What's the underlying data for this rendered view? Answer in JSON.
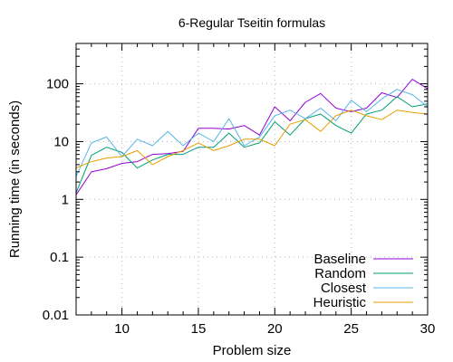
{
  "chart_data": {
    "type": "line",
    "title": "6-Regular Tseitin formulas",
    "xlabel": "Problem size",
    "ylabel": "Running time (in seconds)",
    "xlim": [
      7,
      30
    ],
    "ylim": [
      0.01,
      500
    ],
    "yscale": "log",
    "grid": true,
    "legend_position": "bottom-right",
    "x_ticks": [
      10,
      15,
      20,
      25,
      30
    ],
    "x_tick_labels": [
      "10",
      "15",
      "20",
      "25",
      "30"
    ],
    "y_ticks": [
      0.01,
      0.1,
      1,
      10,
      100
    ],
    "y_tick_labels": [
      "0.01",
      "0.1",
      "1",
      "10",
      "100"
    ],
    "x": [
      7,
      8,
      9,
      10,
      11,
      12,
      13,
      14,
      15,
      16,
      17,
      18,
      19,
      20,
      21,
      22,
      23,
      24,
      25,
      26,
      27,
      28,
      29,
      30
    ],
    "series": [
      {
        "name": "Baseline",
        "color": "#9400d3",
        "values": [
          1.2,
          3.0,
          3.4,
          4.2,
          4.5,
          6.0,
          6.2,
          6.8,
          17.0,
          17.0,
          16.5,
          19.0,
          13.0,
          40.0,
          23.0,
          48.0,
          68.0,
          38.0,
          33.0,
          38.0,
          70.0,
          58.0,
          120.0,
          82.0
        ]
      },
      {
        "name": "Random",
        "color": "#009e73",
        "values": [
          1.3,
          5.8,
          8.0,
          6.5,
          3.5,
          4.8,
          6.0,
          6.0,
          8.0,
          8.0,
          14.0,
          8.0,
          9.5,
          22.0,
          13.0,
          25.0,
          30.0,
          19.0,
          14.0,
          30.0,
          35.0,
          60.0,
          40.0,
          45.0
        ]
      },
      {
        "name": "Closest",
        "color": "#56b4e9",
        "values": [
          2.5,
          9.5,
          12.0,
          5.5,
          11.0,
          8.5,
          15.0,
          8.5,
          14.0,
          10.0,
          25.0,
          8.5,
          12.0,
          28.0,
          35.0,
          25.0,
          38.0,
          23.0,
          52.0,
          33.0,
          55.0,
          80.0,
          65.0,
          40.0
        ]
      },
      {
        "name": "Heuristic",
        "color": "#e69f00",
        "values": [
          3.5,
          4.5,
          5.2,
          5.5,
          7.0,
          4.0,
          5.5,
          7.0,
          9.5,
          7.0,
          8.5,
          11.0,
          11.0,
          8.5,
          20.0,
          24.0,
          15.0,
          28.0,
          35.0,
          28.0,
          24.0,
          35.0,
          32.0,
          30.0
        ]
      }
    ]
  }
}
